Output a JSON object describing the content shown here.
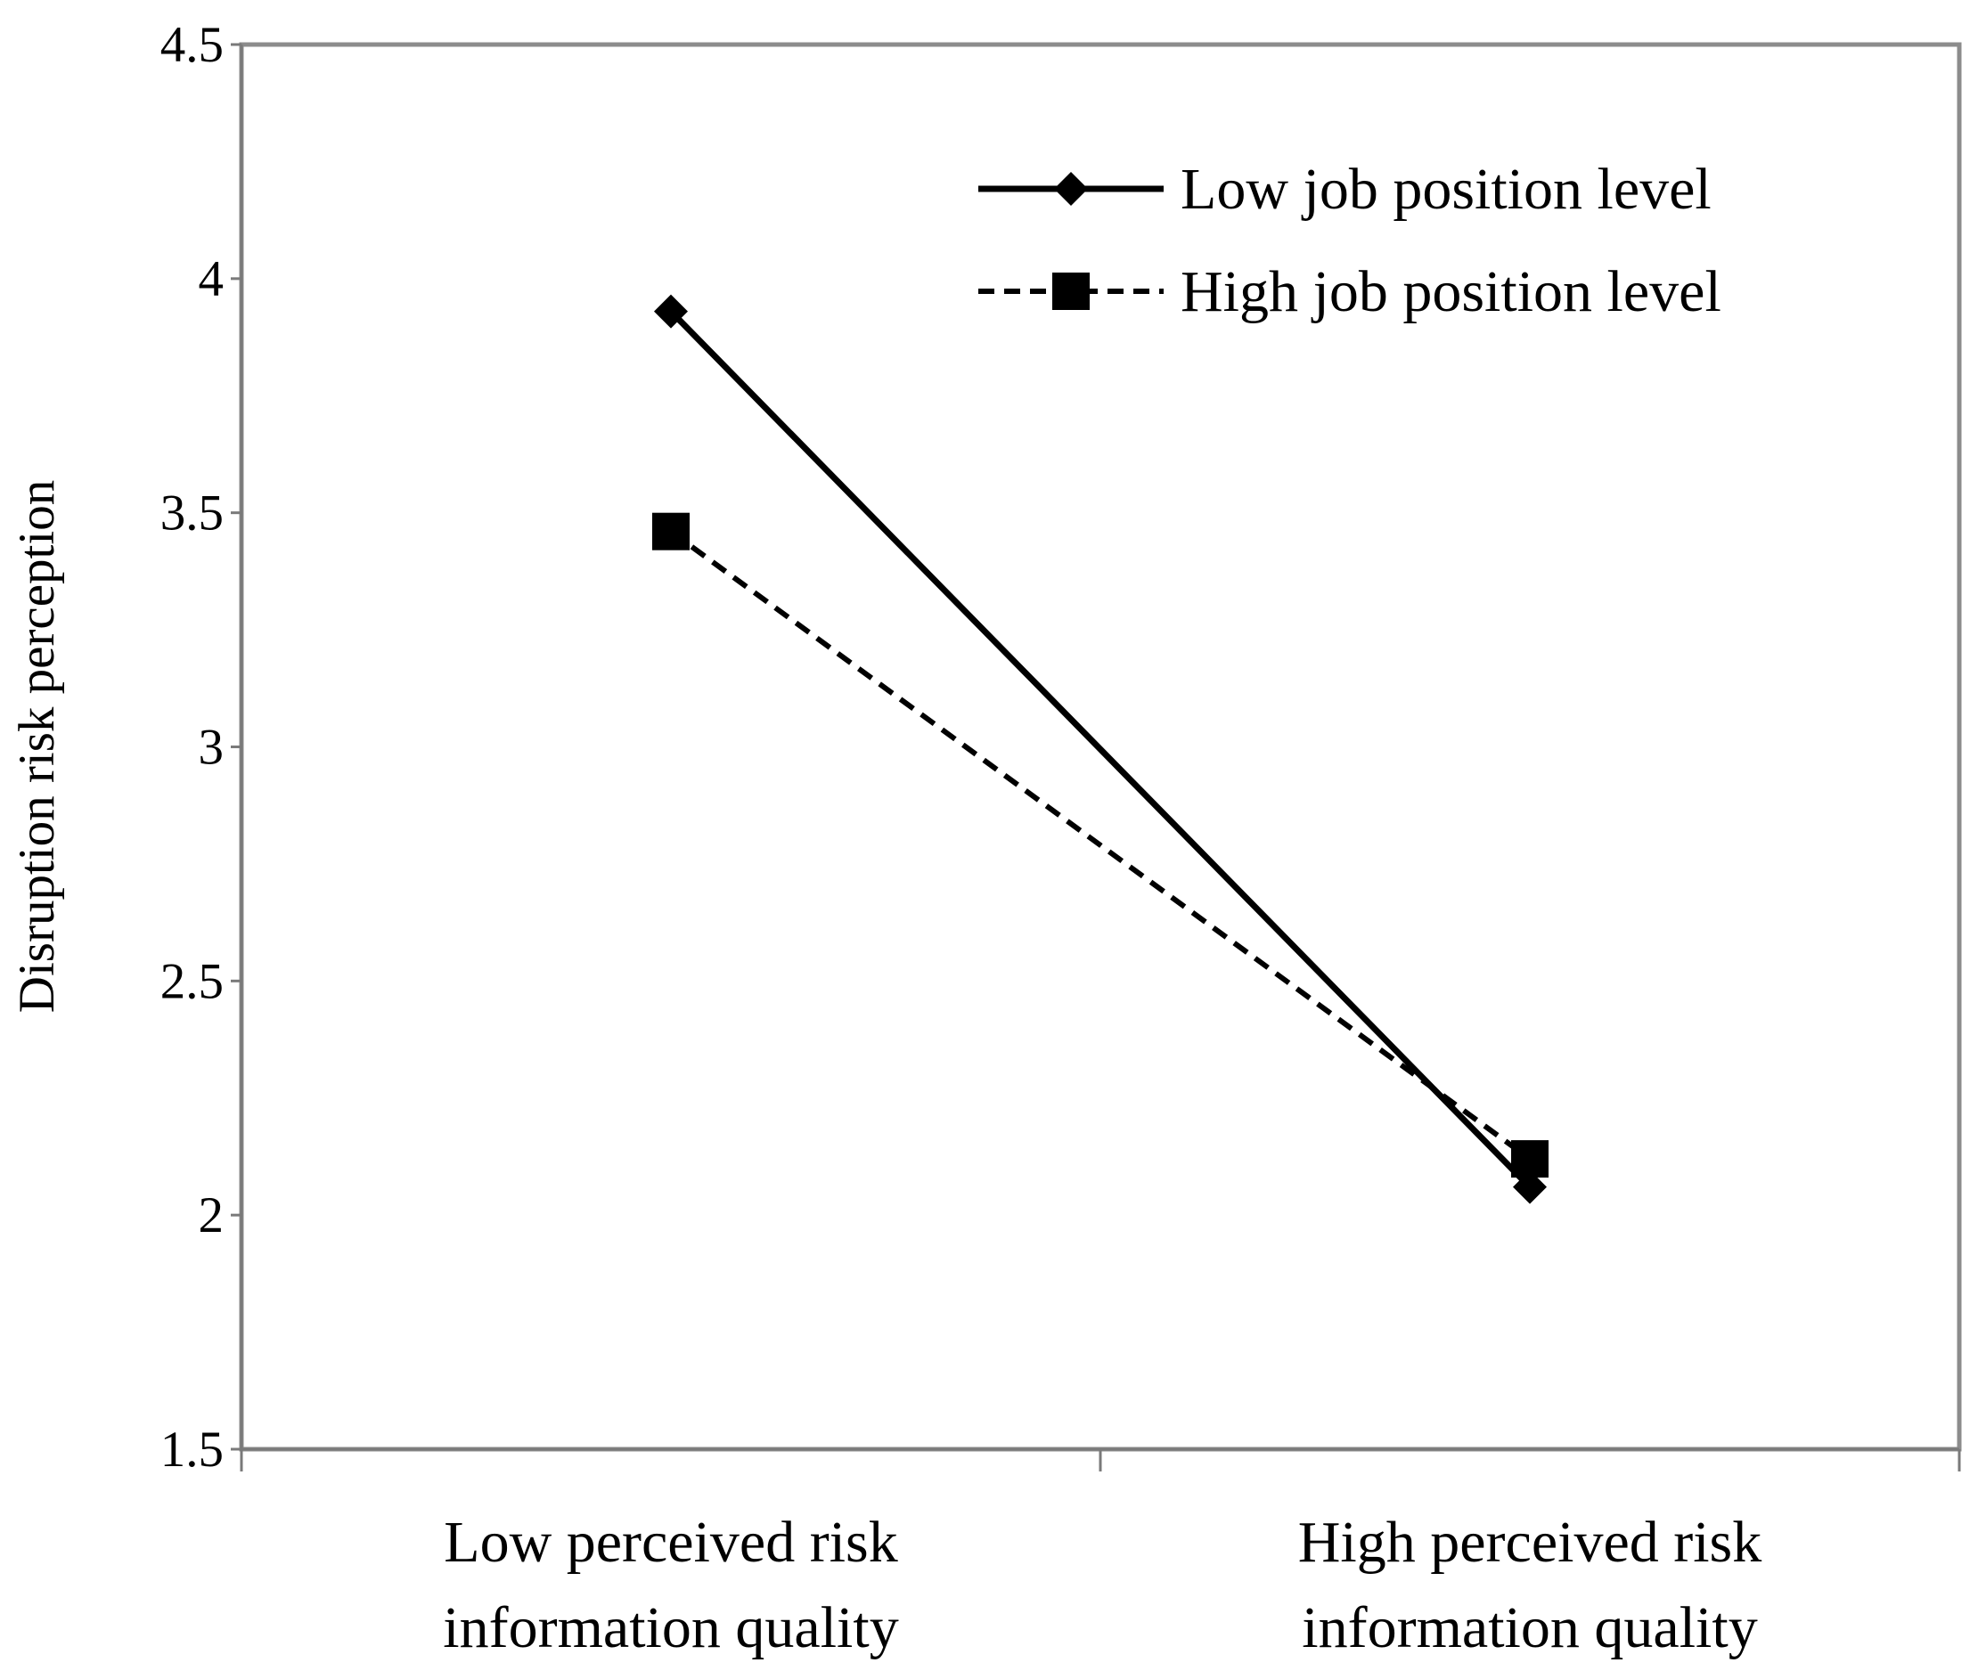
{
  "chart_data": {
    "type": "line",
    "title": "",
    "xlabel": "",
    "ylabel": "Disruption risk perception",
    "ylim": [
      1.5,
      4.5
    ],
    "yticks": [
      "1.5",
      "2",
      "2.5",
      "3",
      "3.5",
      "4",
      "4.5"
    ],
    "categories": [
      [
        "Low perceived risk",
        "information quality"
      ],
      [
        "High perceived risk",
        "information quality"
      ]
    ],
    "grid": false,
    "legend_position": "top-right",
    "series": [
      {
        "name": "Low job position level",
        "values": [
          3.93,
          2.06
        ],
        "marker": "diamond",
        "line": "solid",
        "color": "#000000"
      },
      {
        "name": "High job position level",
        "values": [
          3.46,
          2.12
        ],
        "marker": "square",
        "line": "dashed",
        "color": "#000000"
      }
    ]
  }
}
